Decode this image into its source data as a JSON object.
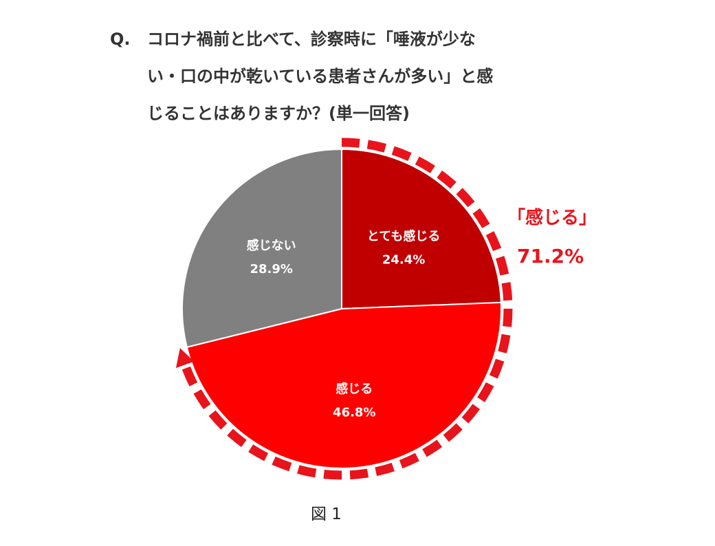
{
  "question": {
    "prefix": "Q.",
    "line1": "コロナ禍前と比べて、診察時に「唾液が少な",
    "line2": "い・口の中が乾いている患者さんが多い」と感",
    "line3": "じることはありますか？(単一回答)"
  },
  "callout": {
    "label": "「感じる」",
    "value": "71.2%"
  },
  "caption": "図 1",
  "colors": {
    "very_feel": "#c00000",
    "feel": "#ff0000",
    "not_feel": "#808080",
    "callout": "#e8141c"
  },
  "chart_data": {
    "type": "pie",
    "slices": [
      {
        "name": "とても感じる",
        "value": 24.4,
        "label": "24.4%",
        "color": "#c00000"
      },
      {
        "name": "感じる",
        "value": 46.8,
        "label": "46.8%",
        "color": "#ff0000"
      },
      {
        "name": "感じない",
        "value": 28.9,
        "label": "28.9%",
        "color": "#808080"
      }
    ],
    "start_angle": "12 o'clock",
    "direction": "clockwise"
  }
}
